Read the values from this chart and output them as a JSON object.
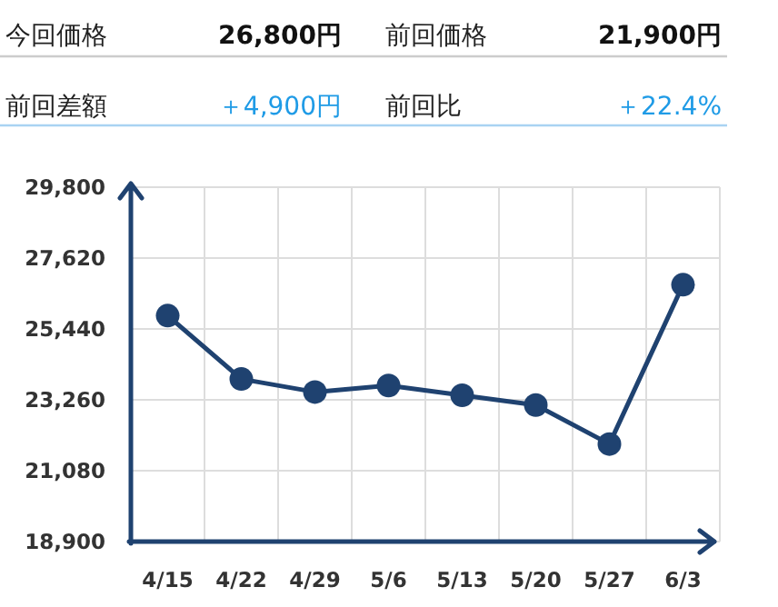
{
  "chart_data": [
    {
      "type": "other",
      "annotations": [
        "今回価格",
        "26,800円",
        "前回価格",
        "21,900円",
        "前回差額",
        "＋4,900円",
        "前回比",
        "＋22.4%"
      ]
    },
    {
      "type": "line",
      "categories": [
        "4/15",
        "4/22",
        "4/29",
        "5/6",
        "5/13",
        "5/20",
        "5/27",
        "6/3"
      ],
      "values": [
        25850,
        23900,
        23500,
        23700,
        23400,
        23100,
        21900,
        26800
      ],
      "color": "#1f4270",
      "ylim": [
        18900,
        29800
      ],
      "yticks": [
        {
          "value": 18900,
          "label": "18,900"
        },
        {
          "value": 21080,
          "label": "21,080"
        },
        {
          "value": 23260,
          "label": "23,260"
        },
        {
          "value": 25440,
          "label": "25,440"
        },
        {
          "value": 27620,
          "label": "27,620"
        },
        {
          "value": 29800,
          "label": "29,800"
        }
      ],
      "grid": true,
      "marker": "circle",
      "line_style": "solid"
    }
  ]
}
